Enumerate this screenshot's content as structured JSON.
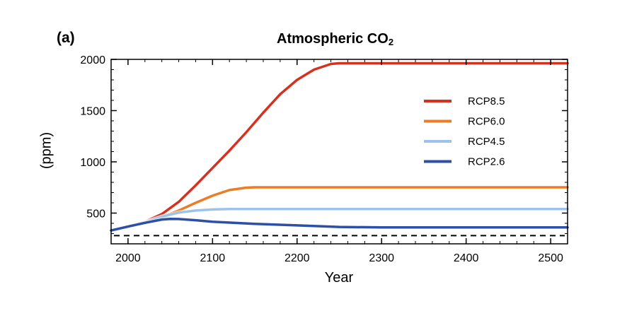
{
  "panel_label": "(a)",
  "chart_data": {
    "type": "line",
    "title_main": "Atmospheric CO",
    "title_sub": "2",
    "xlabel": "Year",
    "ylabel": "(ppm)",
    "xlim": [
      1980,
      2520
    ],
    "ylim": [
      200,
      2000
    ],
    "xticks": [
      2000,
      2100,
      2200,
      2300,
      2400,
      2500
    ],
    "yticks": [
      500,
      1000,
      1500,
      2000
    ],
    "grid": false,
    "legend_position": "right",
    "reference_line": {
      "y": 280,
      "style": "dashed",
      "color": "#000000"
    },
    "series": [
      {
        "name": "RCP8.5",
        "color": "#d7301f",
        "x": [
          1980,
          2000,
          2020,
          2040,
          2060,
          2080,
          2100,
          2120,
          2140,
          2160,
          2180,
          2200,
          2220,
          2240,
          2250,
          2300,
          2400,
          2520
        ],
        "y": [
          330,
          370,
          415,
          490,
          610,
          770,
          940,
          1110,
          1290,
          1480,
          1660,
          1800,
          1900,
          1955,
          1962,
          1962,
          1962,
          1962
        ]
      },
      {
        "name": "RCP6.0",
        "color": "#ec7c25",
        "x": [
          1980,
          2000,
          2020,
          2040,
          2060,
          2080,
          2100,
          2120,
          2140,
          2150,
          2200,
          2300,
          2400,
          2520
        ],
        "y": [
          330,
          370,
          410,
          460,
          525,
          600,
          670,
          725,
          748,
          752,
          752,
          752,
          752,
          752
        ]
      },
      {
        "name": "RCP4.5",
        "color": "#9cc4ea",
        "x": [
          1980,
          2000,
          2020,
          2040,
          2060,
          2080,
          2100,
          2120,
          2150,
          2200,
          2300,
          2400,
          2520
        ],
        "y": [
          330,
          370,
          410,
          465,
          505,
          525,
          535,
          540,
          540,
          540,
          540,
          540,
          540
        ]
      },
      {
        "name": "RCP2.6",
        "color": "#2e4fa8",
        "x": [
          1980,
          2000,
          2020,
          2040,
          2050,
          2060,
          2080,
          2100,
          2150,
          2200,
          2250,
          2300,
          2400,
          2520
        ],
        "y": [
          330,
          368,
          405,
          437,
          443,
          442,
          430,
          415,
          395,
          380,
          365,
          360,
          360,
          360
        ]
      }
    ]
  }
}
